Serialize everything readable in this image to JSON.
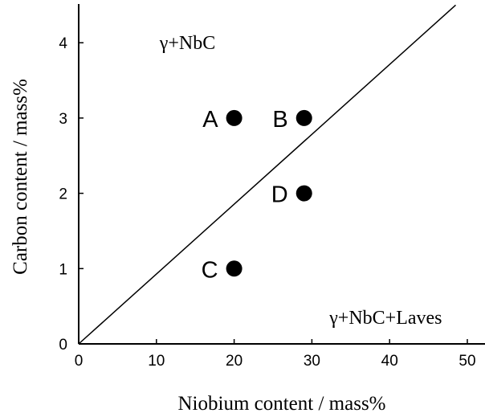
{
  "chart_data": {
    "type": "scatter",
    "title": "",
    "xlabel": "Niobium content / mass%",
    "ylabel": "Carbon content / mass%",
    "xlim": [
      0,
      50
    ],
    "ylim": [
      0,
      4.5
    ],
    "x_ticks": [
      "0",
      "10",
      "20",
      "30",
      "40",
      "50"
    ],
    "y_ticks": [
      "0",
      "1",
      "2",
      "3",
      "4"
    ],
    "grid": false,
    "points": [
      {
        "label": "A",
        "x": 20,
        "y": 3
      },
      {
        "label": "B",
        "x": 29,
        "y": 3
      },
      {
        "label": "C",
        "x": 20,
        "y": 1
      },
      {
        "label": "D",
        "x": 29,
        "y": 2
      }
    ],
    "boundary_line": {
      "x": [
        0,
        48.5
      ],
      "y": [
        0,
        4.5
      ]
    },
    "annotations": [
      {
        "text": "γ+NbC",
        "x": 14,
        "y": 4.0
      },
      {
        "text": "γ+NbC+Laves",
        "x": 39.5,
        "y": 0.35
      }
    ]
  }
}
